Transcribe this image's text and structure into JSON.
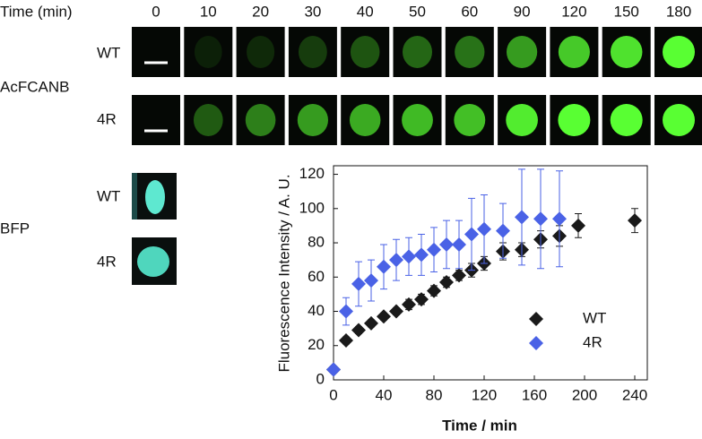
{
  "image_panel": {
    "time_label": "Time (min)",
    "times": [
      0,
      10,
      20,
      30,
      40,
      50,
      60,
      90,
      120,
      150,
      180
    ],
    "stain_label": "AcFCANB",
    "rows": [
      "WT",
      "4R"
    ]
  },
  "bfp_panel": {
    "label": "BFP",
    "rows": [
      "WT",
      "4R"
    ]
  },
  "chart_data": {
    "type": "scatter",
    "x_label": "Time / min",
    "y_label": "Fluorescence Intensity / A. U.",
    "xlim": [
      0,
      250
    ],
    "xticks": [
      0,
      40,
      80,
      120,
      160,
      200,
      240
    ],
    "ylim": [
      0,
      125
    ],
    "yticks": [
      0,
      20,
      40,
      60,
      80,
      100,
      120
    ],
    "legend": "lower right",
    "series": [
      {
        "name": "WT",
        "color": "#1a1a1a",
        "x": [
          0,
          10,
          20,
          30,
          40,
          50,
          60,
          70,
          80,
          90,
          100,
          110,
          120,
          135,
          150,
          165,
          180,
          195,
          240
        ],
        "values": [
          6,
          23,
          29,
          33,
          37,
          40,
          44,
          47,
          52,
          57,
          61,
          64,
          68,
          75,
          76,
          82,
          84,
          90,
          93
        ],
        "errors": [
          1,
          2,
          2,
          2,
          2,
          2,
          3,
          3,
          3,
          3,
          3,
          4,
          4,
          5,
          4,
          5,
          6,
          7,
          7
        ]
      },
      {
        "name": "4R",
        "color": "#4a62e6",
        "x": [
          0,
          10,
          20,
          30,
          40,
          50,
          60,
          70,
          80,
          90,
          100,
          110,
          120,
          135,
          150,
          165,
          180
        ],
        "values": [
          6,
          40,
          56,
          58,
          66,
          70,
          72,
          73,
          76,
          79,
          79,
          85,
          88,
          87,
          95,
          94,
          94
        ],
        "errors": [
          1,
          8,
          13,
          12,
          13,
          12,
          11,
          12,
          13,
          14,
          14,
          21,
          20,
          16,
          28,
          29,
          28
        ]
      }
    ]
  }
}
